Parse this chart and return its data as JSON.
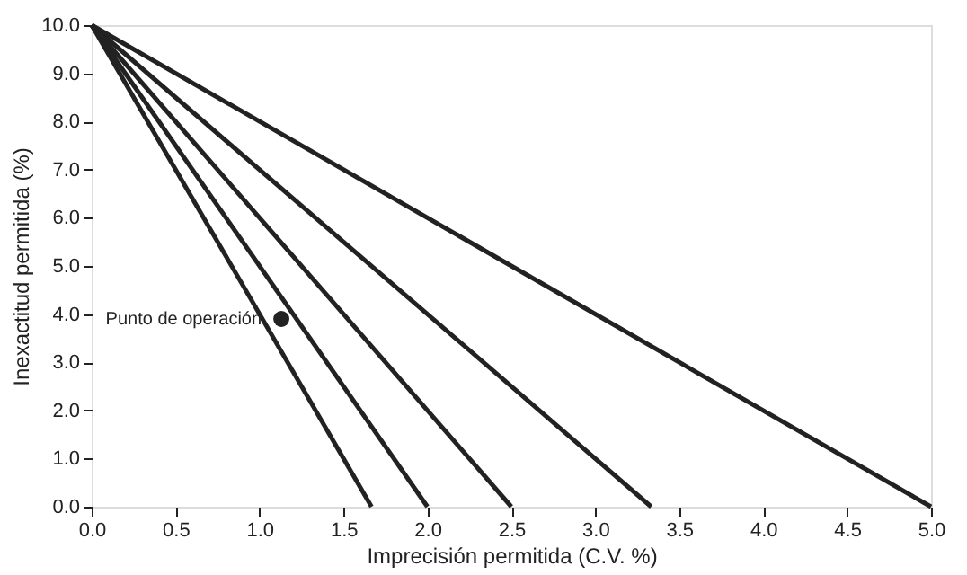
{
  "chart_data": {
    "type": "line",
    "xlabel": "Imprecisión permitida (C.V. %)",
    "ylabel": "Inexactitud permitida (%)",
    "series": [
      {
        "color": "#222222",
        "x": [
          0,
          1.667
        ],
        "values": [
          10,
          0
        ]
      },
      {
        "color": "#222222",
        "x": [
          0,
          2
        ],
        "values": [
          10,
          0
        ]
      },
      {
        "color": "#222222",
        "x": [
          0,
          2.5
        ],
        "values": [
          10,
          0
        ]
      },
      {
        "color": "#222222",
        "x": [
          0,
          3.333
        ],
        "values": [
          10,
          0
        ]
      },
      {
        "color": "#222222",
        "x": [
          0,
          5
        ],
        "values": [
          10,
          0
        ]
      },
      {
        "type": "scatter",
        "marker": "circle",
        "color": "#222222",
        "x": [
          1.13
        ],
        "values": [
          3.9
        ]
      }
    ],
    "annotations": [
      {
        "text": "Punto de operación",
        "x": 1.13,
        "y": 3.9
      }
    ],
    "xlim": [
      0,
      5
    ],
    "ylim": [
      0,
      10
    ],
    "xticks": [
      {
        "value": 0,
        "label": "0.0"
      },
      0.5,
      {
        "value": 1,
        "label": "1.0"
      },
      1.5,
      {
        "value": 2,
        "label": "2.0"
      },
      2.5,
      {
        "value": 3,
        "label": "3.0"
      },
      3.5,
      {
        "value": 4,
        "label": "4.0"
      },
      4.5,
      {
        "value": 5,
        "label": "5.0"
      }
    ],
    "yticks": [
      {
        "value": 0,
        "label": "0.0"
      },
      {
        "value": 1,
        "label": "1.0"
      },
      {
        "value": 2,
        "label": "2.0"
      },
      {
        "value": 3,
        "label": "3.0"
      },
      {
        "value": 4,
        "label": "4.0"
      },
      {
        "value": 5,
        "label": "5.0"
      },
      {
        "value": 6,
        "label": "6.0"
      },
      {
        "value": 7,
        "label": "7.0"
      },
      {
        "value": 8,
        "label": "8.0"
      },
      {
        "value": 9,
        "label": "9.0"
      },
      {
        "value": 10,
        "label": "10.0"
      }
    ],
    "grid": false,
    "line_style": "solid"
  }
}
